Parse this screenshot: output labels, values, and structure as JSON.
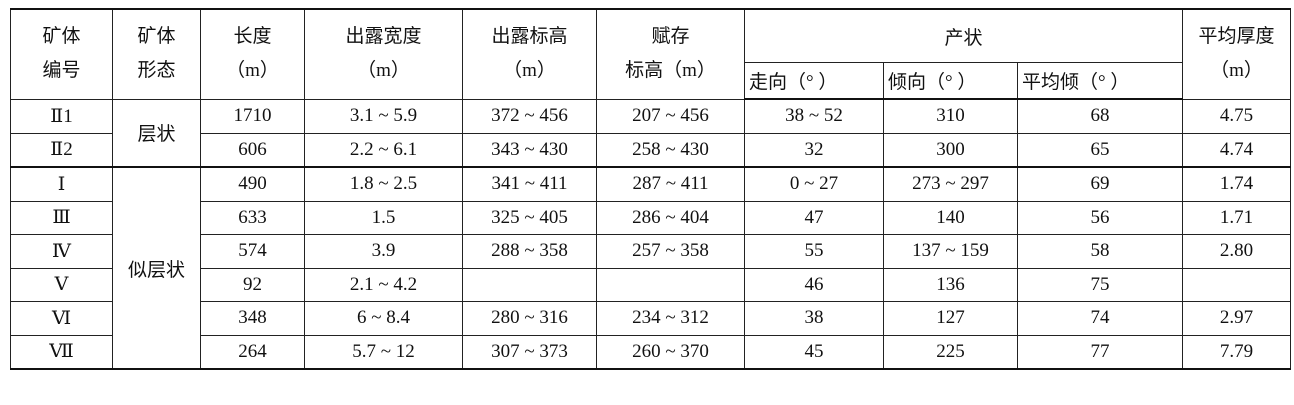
{
  "table": {
    "headers": {
      "id": [
        "矿体",
        "编号"
      ],
      "form": [
        "矿体",
        "形态"
      ],
      "length": [
        "长度",
        "（m）"
      ],
      "outcrop_width": [
        "出露宽度",
        "（m）"
      ],
      "outcrop_elev": [
        "出露标高",
        "（m）"
      ],
      "occurrence_elev": [
        "赋存",
        "标高（m）"
      ],
      "attitude": "产状",
      "strike": "走向（°  ）",
      "dip_dir": "倾向（°  ）",
      "avg_dip": "平均倾（°  ）",
      "thickness": [
        "平均厚度",
        "（m）"
      ]
    },
    "groups": [
      {
        "form": "层状",
        "rows": [
          {
            "id": "Ⅱ1",
            "length": "1710",
            "outcrop_width": "3.1 ~ 5.9",
            "outcrop_elev": "372 ~ 456",
            "occurrence_elev": "207 ~ 456",
            "strike": "38 ~ 52",
            "dip_dir": "310",
            "avg_dip": "68",
            "thickness": "4.75"
          },
          {
            "id": "Ⅱ2",
            "length": "606",
            "outcrop_width": "2.2 ~ 6.1",
            "outcrop_elev": "343 ~ 430",
            "occurrence_elev": "258 ~ 430",
            "strike": "32",
            "dip_dir": "300",
            "avg_dip": "65",
            "thickness": "4.74"
          }
        ]
      },
      {
        "form": "似层状",
        "rows": [
          {
            "id": "Ⅰ",
            "length": "490",
            "outcrop_width": "1.8 ~ 2.5",
            "outcrop_elev": "341 ~ 411",
            "occurrence_elev": "287 ~ 411",
            "strike": "0 ~ 27",
            "dip_dir": "273 ~ 297",
            "avg_dip": "69",
            "thickness": "1.74"
          },
          {
            "id": "Ⅲ",
            "length": "633",
            "outcrop_width": "1.5",
            "outcrop_elev": "325 ~ 405",
            "occurrence_elev": "286 ~ 404",
            "strike": "47",
            "dip_dir": "140",
            "avg_dip": "56",
            "thickness": "1.71"
          },
          {
            "id": "Ⅳ",
            "length": "574",
            "outcrop_width": "3.9",
            "outcrop_elev": "288 ~ 358",
            "occurrence_elev": "257 ~ 358",
            "strike": "55",
            "dip_dir": "137 ~ 159",
            "avg_dip": "58",
            "thickness": "2.80"
          },
          {
            "id": "Ⅴ",
            "length": "92",
            "outcrop_width": "2.1 ~ 4.2",
            "outcrop_elev": "",
            "occurrence_elev": "",
            "strike": "46",
            "dip_dir": "136",
            "avg_dip": "75",
            "thickness": ""
          },
          {
            "id": "Ⅵ",
            "length": "348",
            "outcrop_width": "6 ~ 8.4",
            "outcrop_elev": "280 ~ 316",
            "occurrence_elev": "234 ~ 312",
            "strike": "38",
            "dip_dir": "127",
            "avg_dip": "74",
            "thickness": "2.97"
          },
          {
            "id": "Ⅶ",
            "length": "264",
            "outcrop_width": "5.7 ~ 12",
            "outcrop_elev": "307 ~ 373",
            "occurrence_elev": "260 ~ 370",
            "strike": "45",
            "dip_dir": "225",
            "avg_dip": "77",
            "thickness": "7.79"
          }
        ]
      }
    ]
  }
}
